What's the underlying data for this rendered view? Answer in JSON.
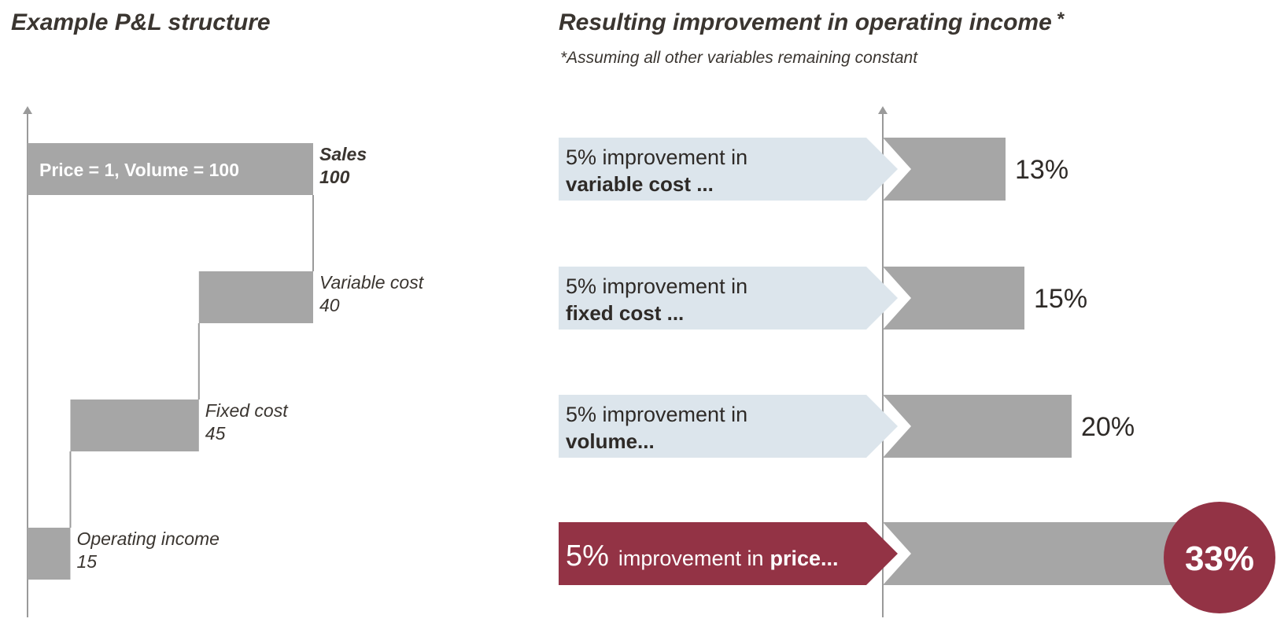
{
  "colors": {
    "bar": "#a6a6a6",
    "axis": "#9a9a9a",
    "arrow_light": "#dce5ec",
    "highlight": "#933345",
    "text": "#2e2a27"
  },
  "chart_data": [
    {
      "type": "waterfall",
      "title": "Example P&L structure",
      "inbar_label": "Price = 1, Volume = 100",
      "steps": [
        {
          "label": "Sales",
          "value": 100,
          "base": 0,
          "kind": "total"
        },
        {
          "label": "Variable cost",
          "value": 40,
          "base": 60,
          "kind": "decrease"
        },
        {
          "label": "Fixed cost",
          "value": 45,
          "base": 15,
          "kind": "decrease"
        },
        {
          "label": "Operating income",
          "value": 15,
          "base": 0,
          "kind": "result"
        }
      ]
    },
    {
      "type": "bar",
      "orientation": "horizontal",
      "title": "Resulting improvement in operating income",
      "title_mark": "*",
      "footnote": "*Assuming all other variables remaining constant",
      "categories": [
        {
          "line1": "5% improvement in",
          "line2": "variable cost ...",
          "highlight": false
        },
        {
          "line1": "5% improvement in",
          "line2": "fixed cost ...",
          "highlight": false
        },
        {
          "line1": "5% improvement in",
          "line2": "volume...",
          "highlight": false
        },
        {
          "big": "5%",
          "mid": "improvement in",
          "bold": "price...",
          "highlight": true
        }
      ],
      "values": [
        13,
        15,
        20,
        33
      ],
      "value_labels": [
        "13%",
        "15%",
        "20%",
        "33%"
      ]
    }
  ]
}
